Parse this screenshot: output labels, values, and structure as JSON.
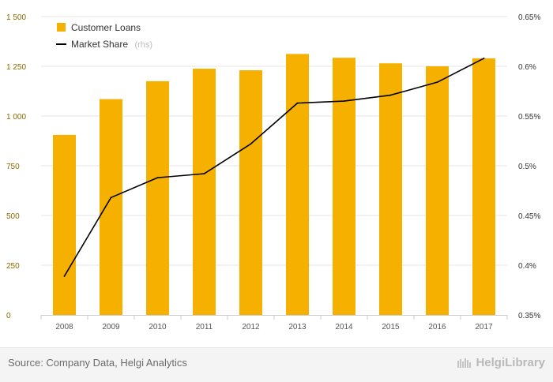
{
  "chart_data": {
    "type": "bar+line",
    "categories": [
      "2008",
      "2009",
      "2010",
      "2011",
      "2012",
      "2013",
      "2014",
      "2015",
      "2016",
      "2017"
    ],
    "series": [
      {
        "name": "Customer Loans",
        "type": "bar",
        "axis": "left",
        "color": "#f6b000",
        "values": [
          905,
          1085,
          1175,
          1238,
          1230,
          1312,
          1293,
          1265,
          1250,
          1290
        ]
      },
      {
        "name": "Market Share",
        "name_suffix": "(rhs)",
        "type": "line",
        "axis": "right",
        "color": "#000000",
        "values": [
          0.389,
          0.468,
          0.488,
          0.492,
          0.522,
          0.563,
          0.565,
          0.571,
          0.584,
          0.608
        ]
      }
    ],
    "y_left": {
      "min": 0,
      "max": 1500,
      "ticks": [
        0,
        250,
        500,
        750,
        1000,
        1250,
        1500
      ],
      "tick_labels": [
        "0",
        "250",
        "500",
        "750",
        "1 000",
        "1 250",
        "1 500"
      ]
    },
    "y_right": {
      "min": 0.35,
      "max": 0.65,
      "ticks": [
        0.35,
        0.4,
        0.45,
        0.5,
        0.55,
        0.6,
        0.65
      ],
      "tick_labels": [
        "0.35%",
        "0.4%",
        "0.45%",
        "0.5%",
        "0.55%",
        "0.6%",
        "0.65%"
      ]
    },
    "grid": true,
    "legend": "top-left"
  },
  "footer": {
    "source": "Source: Company Data, Helgi Analytics",
    "brand": "HelgiLibrary"
  }
}
